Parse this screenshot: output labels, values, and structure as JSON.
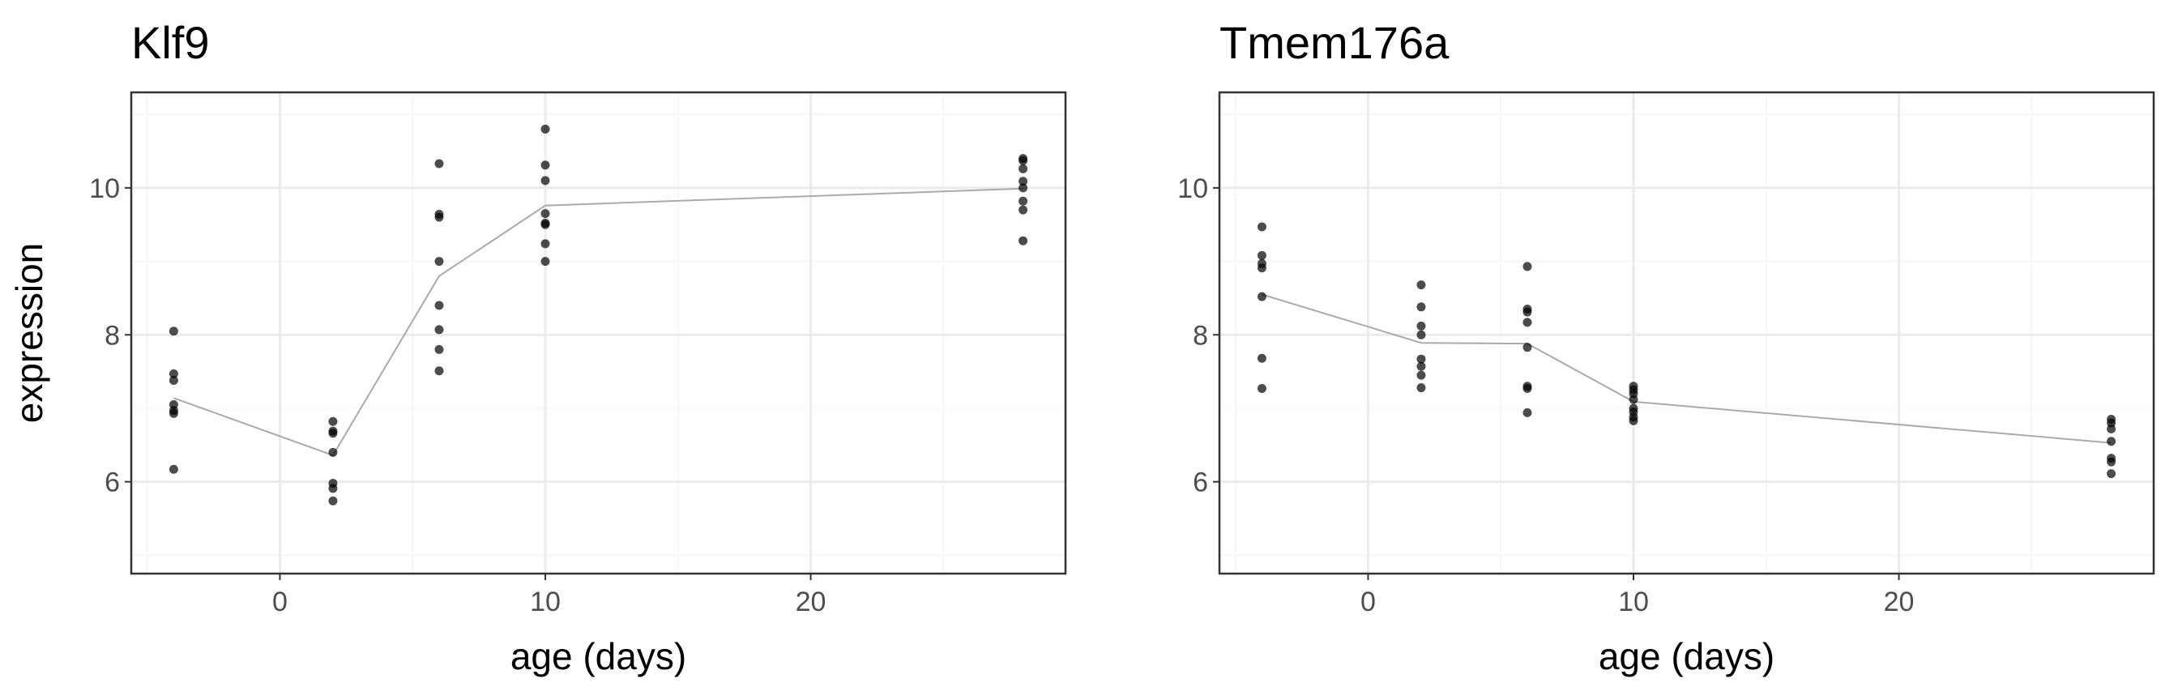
{
  "chart_data": {
    "type": "scatter",
    "xlabel": "age (days)",
    "ylabel": "expression",
    "xlim": [
      -5.6,
      29.6
    ],
    "ylim": [
      4.75,
      11.3
    ],
    "x_ticks": [
      0,
      10,
      20
    ],
    "x_tick_labels": [
      "0",
      "10",
      "20"
    ],
    "y_ticks": [
      6,
      8,
      10
    ],
    "y_tick_labels": [
      "6",
      "8",
      "10"
    ],
    "grid": true,
    "legend": "none",
    "colors": {
      "points": "#000000",
      "line": "#aaaaaa",
      "grid_major": "#ebebeb",
      "grid_minor": "#f5f5f5",
      "panel_border": "#333333"
    },
    "panels": [
      {
        "title": "Klf9",
        "points": [
          {
            "x": -4,
            "y": 8.05
          },
          {
            "x": -4,
            "y": 7.47
          },
          {
            "x": -4,
            "y": 7.38
          },
          {
            "x": -4,
            "y": 7.05
          },
          {
            "x": -4,
            "y": 6.97
          },
          {
            "x": -4,
            "y": 6.93
          },
          {
            "x": -4,
            "y": 6.17
          },
          {
            "x": 2,
            "y": 6.82
          },
          {
            "x": 2,
            "y": 6.69
          },
          {
            "x": 2,
            "y": 6.66
          },
          {
            "x": 2,
            "y": 6.4
          },
          {
            "x": 2,
            "y": 5.98
          },
          {
            "x": 2,
            "y": 5.91
          },
          {
            "x": 2,
            "y": 5.74
          },
          {
            "x": 6,
            "y": 10.33
          },
          {
            "x": 6,
            "y": 9.64
          },
          {
            "x": 6,
            "y": 9.6
          },
          {
            "x": 6,
            "y": 9.0
          },
          {
            "x": 6,
            "y": 8.4
          },
          {
            "x": 6,
            "y": 8.07
          },
          {
            "x": 6,
            "y": 7.8
          },
          {
            "x": 6,
            "y": 7.51
          },
          {
            "x": 10,
            "y": 10.8
          },
          {
            "x": 10,
            "y": 10.31
          },
          {
            "x": 10,
            "y": 10.1
          },
          {
            "x": 10,
            "y": 9.65
          },
          {
            "x": 10,
            "y": 9.52
          },
          {
            "x": 10,
            "y": 9.5
          },
          {
            "x": 10,
            "y": 9.24
          },
          {
            "x": 10,
            "y": 9.0
          },
          {
            "x": 28,
            "y": 10.4
          },
          {
            "x": 28,
            "y": 10.37
          },
          {
            "x": 28,
            "y": 10.26
          },
          {
            "x": 28,
            "y": 10.09
          },
          {
            "x": 28,
            "y": 10.0
          },
          {
            "x": 28,
            "y": 9.82
          },
          {
            "x": 28,
            "y": 9.7
          },
          {
            "x": 28,
            "y": 9.28
          }
        ],
        "line": [
          {
            "x": -4,
            "y": 7.14
          },
          {
            "x": 2,
            "y": 6.36
          },
          {
            "x": 6,
            "y": 8.8
          },
          {
            "x": 10,
            "y": 9.76
          },
          {
            "x": 28,
            "y": 9.99
          }
        ]
      },
      {
        "title": "Tmem176a",
        "points": [
          {
            "x": -4,
            "y": 9.47
          },
          {
            "x": -4,
            "y": 9.08
          },
          {
            "x": -4,
            "y": 8.97
          },
          {
            "x": -4,
            "y": 8.91
          },
          {
            "x": -4,
            "y": 8.52
          },
          {
            "x": -4,
            "y": 7.68
          },
          {
            "x": -4,
            "y": 7.27
          },
          {
            "x": 2,
            "y": 8.68
          },
          {
            "x": 2,
            "y": 8.38
          },
          {
            "x": 2,
            "y": 8.12
          },
          {
            "x": 2,
            "y": 8.0
          },
          {
            "x": 2,
            "y": 7.67
          },
          {
            "x": 2,
            "y": 7.57
          },
          {
            "x": 2,
            "y": 7.45
          },
          {
            "x": 2,
            "y": 7.28
          },
          {
            "x": 6,
            "y": 8.93
          },
          {
            "x": 6,
            "y": 8.35
          },
          {
            "x": 6,
            "y": 8.31
          },
          {
            "x": 6,
            "y": 8.17
          },
          {
            "x": 6,
            "y": 7.83
          },
          {
            "x": 6,
            "y": 7.3
          },
          {
            "x": 6,
            "y": 7.27
          },
          {
            "x": 6,
            "y": 6.94
          },
          {
            "x": 10,
            "y": 7.3
          },
          {
            "x": 10,
            "y": 7.25
          },
          {
            "x": 10,
            "y": 7.2
          },
          {
            "x": 10,
            "y": 7.12
          },
          {
            "x": 10,
            "y": 7.0
          },
          {
            "x": 10,
            "y": 6.95
          },
          {
            "x": 10,
            "y": 6.88
          },
          {
            "x": 10,
            "y": 6.83
          },
          {
            "x": 28,
            "y": 6.85
          },
          {
            "x": 28,
            "y": 6.8
          },
          {
            "x": 28,
            "y": 6.72
          },
          {
            "x": 28,
            "y": 6.55
          },
          {
            "x": 28,
            "y": 6.32
          },
          {
            "x": 28,
            "y": 6.27
          },
          {
            "x": 28,
            "y": 6.11
          }
        ],
        "line": [
          {
            "x": -4,
            "y": 8.55
          },
          {
            "x": 2,
            "y": 7.89
          },
          {
            "x": 6,
            "y": 7.88
          },
          {
            "x": 10,
            "y": 7.09
          },
          {
            "x": 28,
            "y": 6.53
          }
        ]
      }
    ]
  }
}
